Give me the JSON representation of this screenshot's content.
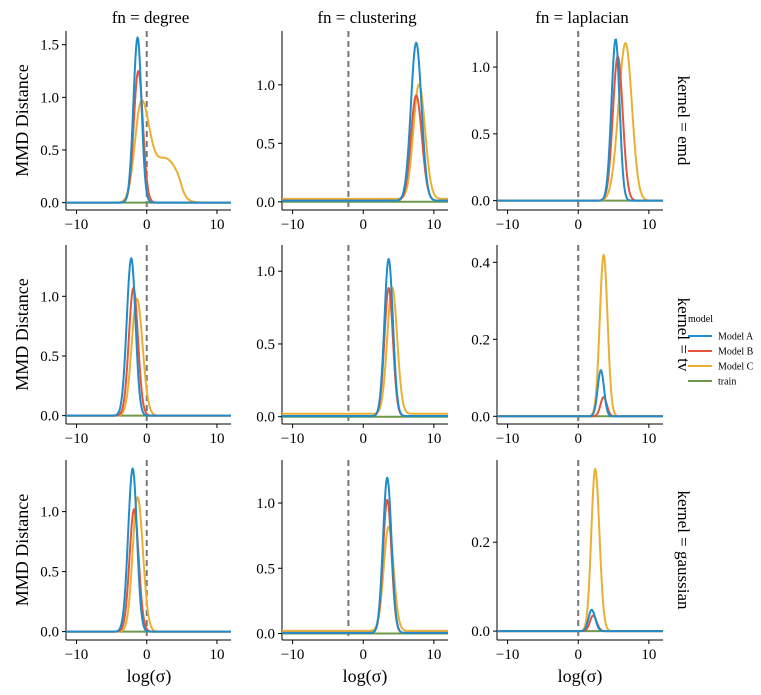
{
  "chart_data": {
    "type": "line",
    "facet_grid": true,
    "col_strips": [
      "fn = degree",
      "fn = clustering",
      "fn = laplacian"
    ],
    "row_strips": [
      "kernel = emd",
      "kernel = tv",
      "kernel = gaussian"
    ],
    "xlabel": "log(σ)",
    "ylabel": "MMD Distance",
    "xlim": [
      -11.5,
      12
    ],
    "xticks": [
      -10,
      0,
      10
    ],
    "legend": {
      "title": "model",
      "position": "right",
      "entries": [
        {
          "name": "Model A",
          "color": "#1f8ccb"
        },
        {
          "name": "Model B",
          "color": "#e4553b"
        },
        {
          "name": "Model C",
          "color": "#ebb033"
        },
        {
          "name": "train",
          "color": "#6f9a4b"
        }
      ]
    },
    "panels": [
      {
        "row": 0,
        "col": 0,
        "ylim": [
          -0.07,
          1.63
        ],
        "yticks": [
          "0.0",
          "0.5",
          "1.0",
          "1.5"
        ],
        "yvals": [
          0,
          0.5,
          1,
          1.5
        ],
        "vline": 0,
        "series": {
          "Model A": {
            "base": 0,
            "lobes": [
              {
                "mu": -1.3,
                "sl": 0.6,
                "sr": 0.55,
                "amp": 1.57
              }
            ]
          },
          "Model B": {
            "base": 0,
            "lobes": [
              {
                "mu": -1.2,
                "sl": 0.65,
                "sr": 0.65,
                "amp": 1.25
              }
            ]
          },
          "Model C": {
            "base": 0,
            "lobes": [
              {
                "mu": -0.8,
                "sl": 0.9,
                "sr": 1.1,
                "amp": 0.88
              },
              {
                "mu": 2.3,
                "sl": 1.8,
                "sr": 1.6,
                "amp": 0.38
              },
              {
                "mu": 4.3,
                "sl": 1.2,
                "sr": 0.6,
                "amp": 0.12
              }
            ]
          },
          "train": {
            "base": 0,
            "lobes": []
          }
        }
      },
      {
        "row": 0,
        "col": 1,
        "ylim": [
          -0.07,
          1.46
        ],
        "yticks": [
          "0.0",
          "0.5",
          "1.0"
        ],
        "yvals": [
          0,
          0.5,
          1
        ],
        "vline": -2.1,
        "series": {
          "Model A": {
            "base": 0.01,
            "lobes": [
              {
                "mu": 7.5,
                "sl": 0.75,
                "sr": 0.75,
                "amp": 1.35
              }
            ]
          },
          "Model B": {
            "base": 0.01,
            "lobes": [
              {
                "mu": 7.5,
                "sl": 0.75,
                "sr": 0.8,
                "amp": 0.9
              }
            ]
          },
          "Model C": {
            "base": 0.025,
            "lobes": [
              {
                "mu": 7.9,
                "sl": 0.8,
                "sr": 0.85,
                "amp": 0.98
              }
            ]
          },
          "train": {
            "base": 0,
            "lobes": []
          }
        }
      },
      {
        "row": 0,
        "col": 2,
        "ylim": [
          -0.07,
          1.27
        ],
        "yticks": [
          "0.0",
          "0.5",
          "1.0"
        ],
        "yvals": [
          0,
          0.5,
          1
        ],
        "vline": 0,
        "series": {
          "Model A": {
            "base": 0,
            "lobes": [
              {
                "mu": 5.3,
                "sl": 0.6,
                "sr": 0.55,
                "amp": 1.21
              }
            ]
          },
          "Model B": {
            "base": 0,
            "lobes": [
              {
                "mu": 5.6,
                "sl": 0.7,
                "sr": 0.7,
                "amp": 1.08
              }
            ]
          },
          "Model C": {
            "base": 0,
            "lobes": [
              {
                "mu": 6.7,
                "sl": 1.0,
                "sr": 0.9,
                "amp": 1.18
              }
            ]
          },
          "train": {
            "base": 0,
            "lobes": []
          }
        }
      },
      {
        "row": 1,
        "col": 0,
        "ylim": [
          -0.07,
          1.43
        ],
        "yticks": [
          "0.0",
          "0.5",
          "1.0"
        ],
        "yvals": [
          0,
          0.5,
          1
        ],
        "vline": 0,
        "series": {
          "Model A": {
            "base": 0,
            "lobes": [
              {
                "mu": -2.2,
                "sl": 0.65,
                "sr": 0.6,
                "amp": 1.32
              }
            ]
          },
          "Model B": {
            "base": 0,
            "lobes": [
              {
                "mu": -1.9,
                "sl": 0.65,
                "sr": 0.65,
                "amp": 1.07
              }
            ]
          },
          "Model C": {
            "base": 0,
            "lobes": [
              {
                "mu": -1.4,
                "sl": 0.75,
                "sr": 0.8,
                "amp": 0.98
              }
            ]
          },
          "train": {
            "base": 0,
            "lobes": []
          }
        }
      },
      {
        "row": 1,
        "col": 1,
        "ylim": [
          -0.05,
          1.18
        ],
        "yticks": [
          "0.0",
          "0.5",
          "1.0"
        ],
        "yvals": [
          0,
          0.5,
          1
        ],
        "vline": -2.1,
        "series": {
          "Model A": {
            "base": 0.005,
            "lobes": [
              {
                "mu": 3.6,
                "sl": 0.6,
                "sr": 0.6,
                "amp": 1.08
              }
            ]
          },
          "Model B": {
            "base": 0.005,
            "lobes": [
              {
                "mu": 3.6,
                "sl": 0.6,
                "sr": 0.6,
                "amp": 0.88
              }
            ]
          },
          "Model C": {
            "base": 0.02,
            "lobes": [
              {
                "mu": 4.1,
                "sl": 0.7,
                "sr": 0.7,
                "amp": 0.87
              }
            ]
          },
          "train": {
            "base": 0,
            "lobes": []
          }
        }
      },
      {
        "row": 1,
        "col": 2,
        "ylim": [
          -0.02,
          0.445
        ],
        "yticks": [
          "0.0",
          "0.2",
          "0.4"
        ],
        "yvals": [
          0,
          0.2,
          0.4
        ],
        "vline": 0,
        "series": {
          "Model A": {
            "base": 0,
            "lobes": [
              {
                "mu": 3.2,
                "sl": 0.45,
                "sr": 0.45,
                "amp": 0.12
              }
            ]
          },
          "Model B": {
            "base": 0,
            "lobes": [
              {
                "mu": 3.6,
                "sl": 0.45,
                "sr": 0.45,
                "amp": 0.05
              }
            ]
          },
          "Model C": {
            "base": 0,
            "lobes": [
              {
                "mu": 3.6,
                "sl": 0.55,
                "sr": 0.55,
                "amp": 0.42
              }
            ]
          },
          "train": {
            "base": 0,
            "lobes": []
          }
        }
      },
      {
        "row": 2,
        "col": 0,
        "ylim": [
          -0.07,
          1.43
        ],
        "yticks": [
          "0.0",
          "0.5",
          "1.0"
        ],
        "yvals": [
          0,
          0.5,
          1
        ],
        "vline": 0,
        "series": {
          "Model A": {
            "base": 0,
            "lobes": [
              {
                "mu": -2.0,
                "sl": 0.65,
                "sr": 0.6,
                "amp": 1.36
              }
            ]
          },
          "Model B": {
            "base": 0,
            "lobes": [
              {
                "mu": -1.8,
                "sl": 0.65,
                "sr": 0.65,
                "amp": 1.02
              }
            ]
          },
          "Model C": {
            "base": 0,
            "lobes": [
              {
                "mu": -1.3,
                "sl": 0.7,
                "sr": 0.75,
                "amp": 1.12
              }
            ]
          },
          "train": {
            "base": 0,
            "lobes": []
          }
        }
      },
      {
        "row": 2,
        "col": 1,
        "ylim": [
          -0.05,
          1.33
        ],
        "yticks": [
          "0.0",
          "0.5",
          "1.0"
        ],
        "yvals": [
          0,
          0.5,
          1
        ],
        "vline": -2.1,
        "series": {
          "Model A": {
            "base": 0.005,
            "lobes": [
              {
                "mu": 3.4,
                "sl": 0.6,
                "sr": 0.6,
                "amp": 1.19
              }
            ]
          },
          "Model B": {
            "base": 0.005,
            "lobes": [
              {
                "mu": 3.4,
                "sl": 0.6,
                "sr": 0.6,
                "amp": 1.02
              }
            ]
          },
          "Model C": {
            "base": 0.02,
            "lobes": [
              {
                "mu": 3.6,
                "sl": 0.7,
                "sr": 0.7,
                "amp": 0.8
              }
            ]
          },
          "train": {
            "base": 0,
            "lobes": []
          }
        }
      },
      {
        "row": 2,
        "col": 2,
        "ylim": [
          -0.02,
          0.385
        ],
        "yticks": [
          "0.0",
          "0.2"
        ],
        "yvals": [
          0,
          0.2
        ],
        "vline": 0,
        "series": {
          "Model A": {
            "base": 0,
            "lobes": [
              {
                "mu": 1.9,
                "sl": 0.45,
                "sr": 0.5,
                "amp": 0.048
              }
            ]
          },
          "Model B": {
            "base": 0,
            "lobes": [
              {
                "mu": 2.1,
                "sl": 0.45,
                "sr": 0.5,
                "amp": 0.035
              }
            ]
          },
          "Model C": {
            "base": 0,
            "lobes": [
              {
                "mu": 2.4,
                "sl": 0.55,
                "sr": 0.6,
                "amp": 0.365
              }
            ]
          },
          "train": {
            "base": 0,
            "lobes": []
          }
        }
      }
    ]
  }
}
